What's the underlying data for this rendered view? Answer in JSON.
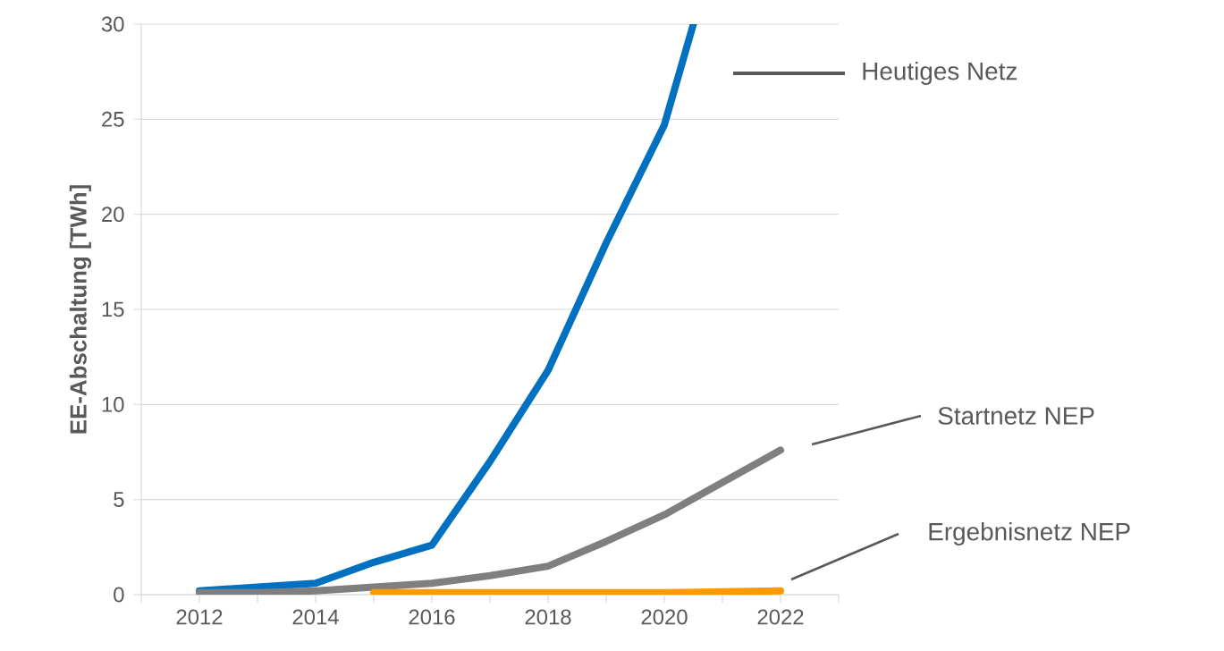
{
  "chart_data": {
    "type": "line",
    "ylabel": "EE-Abschaltung [TWh]",
    "xlim": [
      2011,
      2023
    ],
    "xticks": [
      {
        "value": 2011,
        "label": null
      },
      2012,
      {
        "value": 2013,
        "label": null
      },
      2014,
      {
        "value": 2015,
        "label": null
      },
      2016,
      {
        "value": 2017,
        "label": null
      },
      2018,
      {
        "value": 2019,
        "label": null
      },
      2020,
      {
        "value": 2021,
        "label": null
      },
      2022,
      {
        "value": 2023,
        "label": null
      }
    ],
    "ylim": [
      0,
      30
    ],
    "yticks": [
      0,
      5,
      10,
      15,
      20,
      25,
      30
    ],
    "grid": "y",
    "legend": false,
    "marker": "none",
    "line_style": "solid",
    "series": [
      {
        "name": "Heutiges Netz",
        "color": "#0070c0",
        "x": [
          2012,
          2013,
          2014,
          2015,
          2016,
          2017,
          2018,
          2019,
          2020,
          2020.5
        ],
        "values": [
          0.2,
          0.4,
          0.6,
          1.7,
          2.6,
          7,
          11.8,
          18.5,
          24.7,
          30
        ]
      },
      {
        "name": "Startnetz NEP",
        "color": "#7f7f7f",
        "x": [
          2012,
          2013,
          2014,
          2015,
          2016,
          2017,
          2018,
          2019,
          2020,
          2021,
          2022
        ],
        "values": [
          0.1,
          0.1,
          0.2,
          0.4,
          0.6,
          1,
          1.5,
          2.8,
          4.2,
          5.9,
          7.6
        ]
      },
      {
        "name": "Ergebnisnetz NEP",
        "color": "#ff9900",
        "x": [
          2015,
          2016,
          2017,
          2018,
          2019,
          2020,
          2021,
          2022
        ],
        "values": [
          0.1,
          0.1,
          0.1,
          0.1,
          0.1,
          0.1,
          0.15,
          0.2
        ]
      }
    ]
  }
}
